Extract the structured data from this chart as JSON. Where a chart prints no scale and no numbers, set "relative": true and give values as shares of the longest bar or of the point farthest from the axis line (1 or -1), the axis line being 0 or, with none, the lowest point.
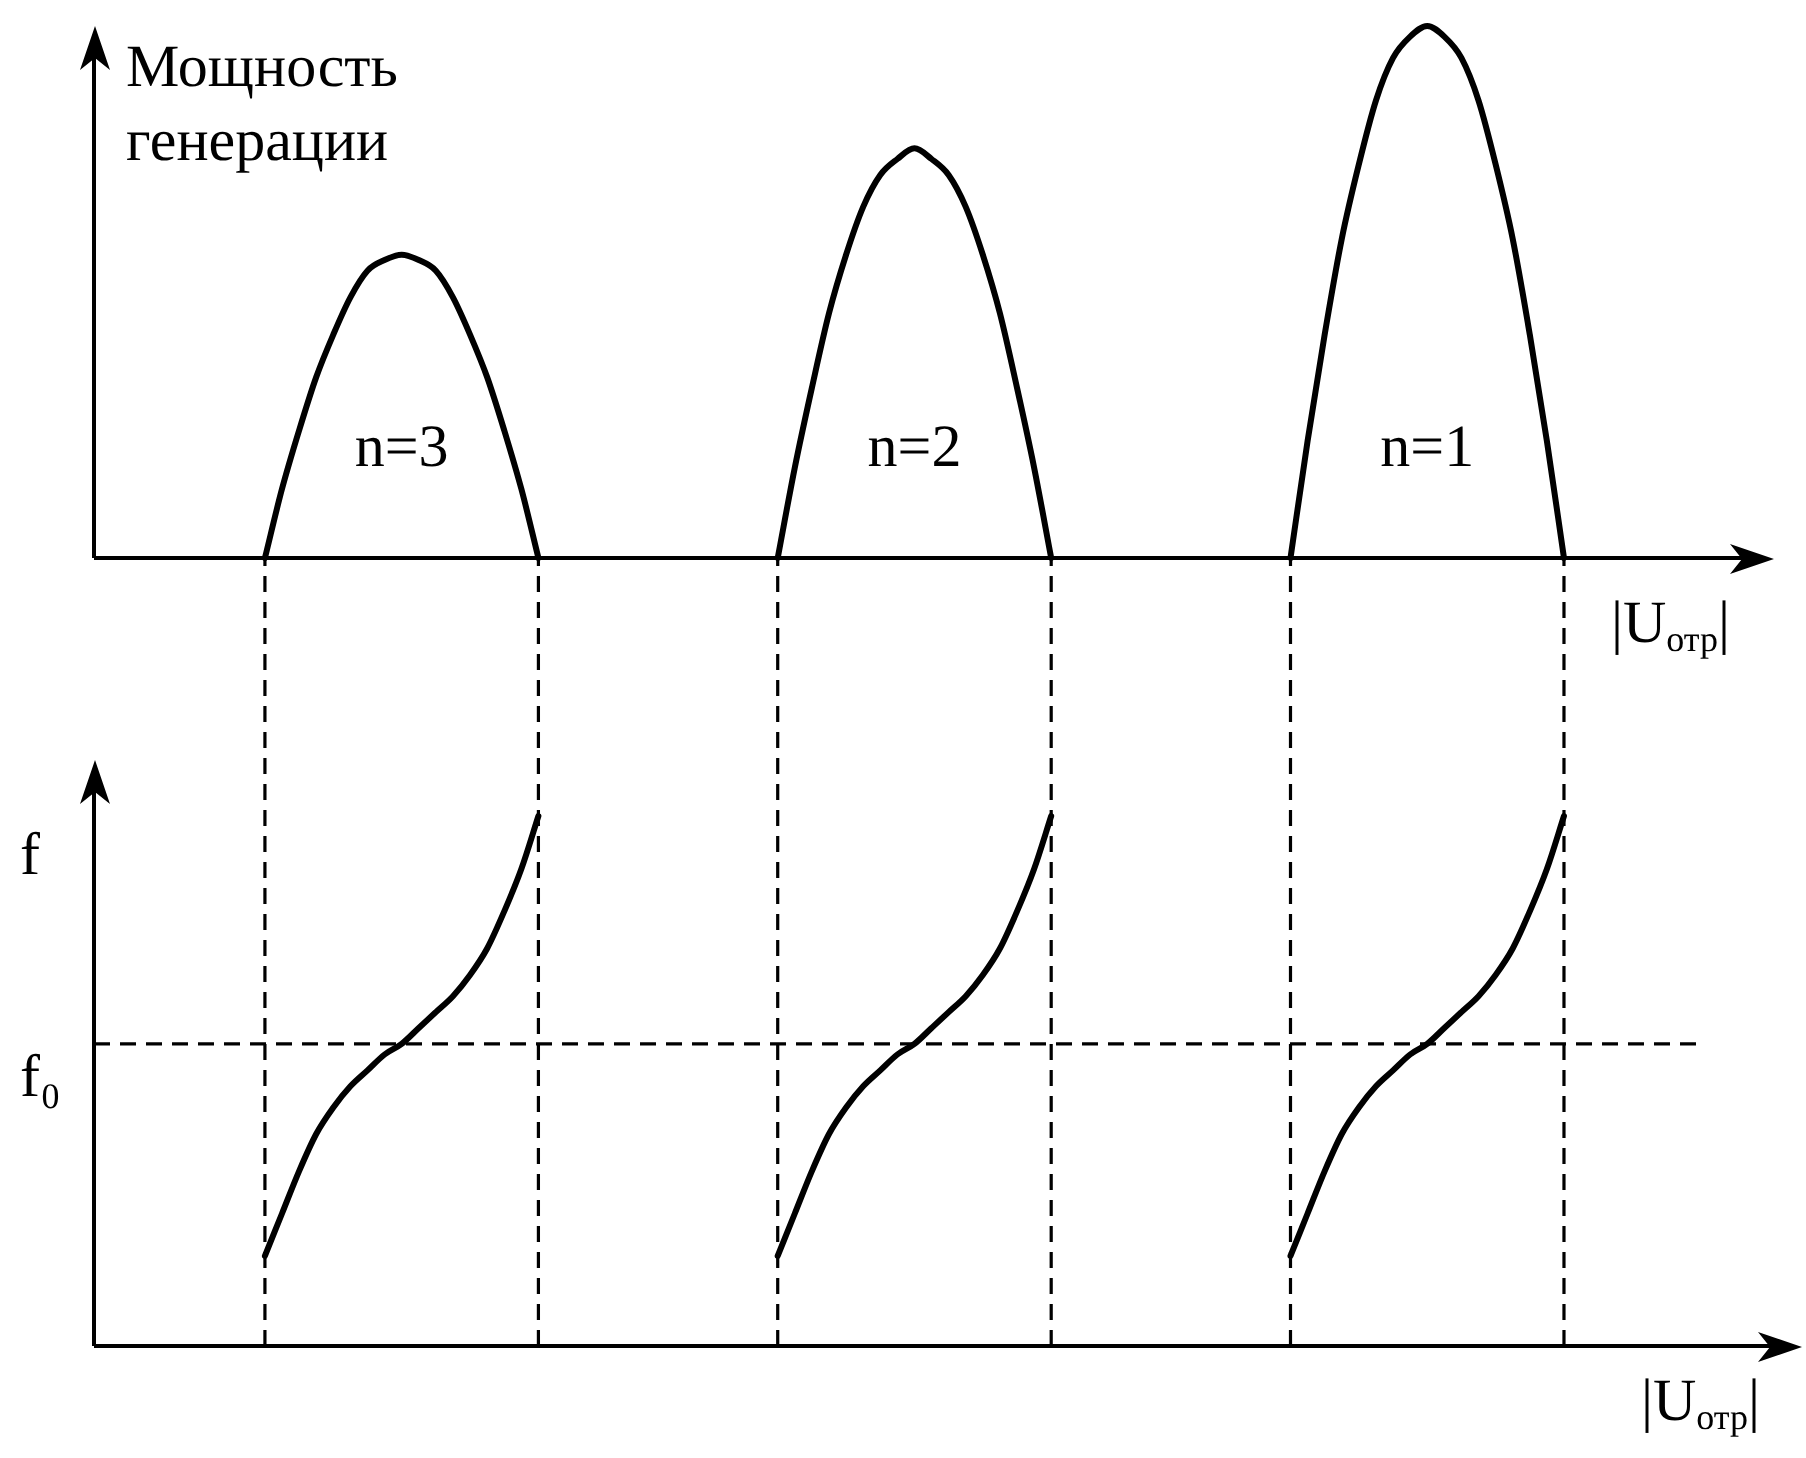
{
  "chart_data": [
    {
      "type": "line",
      "ylabel": "Мощность генерации",
      "xlabel": "|U$_{отр}$|",
      "relative": true,
      "categories": [
        null,
        null,
        null,
        null,
        null,
        null,
        null,
        null,
        null,
        null,
        null,
        null,
        null,
        null,
        null,
        null,
        null,
        null,
        null,
        null,
        null,
        null,
        null,
        null,
        null,
        null,
        null,
        null,
        null,
        null,
        null,
        null,
        null,
        null,
        null,
        null,
        null,
        null,
        null,
        null,
        null,
        null,
        null,
        null,
        null,
        null,
        null,
        null,
        null,
        null,
        null,
        null,
        null,
        null,
        null,
        null,
        null,
        null,
        null,
        null,
        null,
        null,
        null,
        null,
        null,
        null,
        null,
        null,
        null,
        null,
        null,
        null,
        null,
        null,
        null,
        null,
        null,
        null,
        null,
        null,
        null,
        null,
        null,
        null,
        null,
        null,
        null,
        null,
        null,
        null,
        null,
        null,
        null,
        null,
        null,
        null,
        null,
        null
      ],
      "series": [
        {
          "name": "n=3",
          "color": "#000000",
          "values": [
            null,
            null,
            null,
            null,
            null,
            null,
            null,
            null,
            null,
            null,
            0,
            0.13,
            0.24,
            0.34,
            0.42,
            0.49,
            0.54,
            0.56,
            0.57,
            0.56,
            0.54,
            0.49,
            0.42,
            0.34,
            0.24,
            0.13,
            0,
            null,
            null,
            null,
            null,
            null,
            null,
            null,
            null,
            null,
            null,
            null,
            null,
            null,
            null,
            null,
            null,
            null,
            null,
            null,
            null,
            null,
            null,
            null,
            null,
            null,
            null,
            null,
            null,
            null,
            null,
            null,
            null,
            null,
            null,
            null,
            null,
            null,
            null,
            null,
            null,
            null,
            null,
            null,
            null,
            null,
            null,
            null,
            null,
            null,
            null,
            null,
            null,
            null,
            null,
            null,
            null,
            null,
            null,
            null,
            null,
            null,
            null,
            null,
            null,
            null,
            null,
            null,
            null,
            null,
            null,
            null
          ]
        },
        {
          "name": "n=2",
          "color": "#000000",
          "values": [
            null,
            null,
            null,
            null,
            null,
            null,
            null,
            null,
            null,
            null,
            null,
            null,
            null,
            null,
            null,
            null,
            null,
            null,
            null,
            null,
            null,
            null,
            null,
            null,
            null,
            null,
            null,
            null,
            null,
            null,
            null,
            null,
            null,
            null,
            null,
            null,
            null,
            null,
            null,
            null,
            0,
            0.17,
            0.32,
            0.46,
            0.57,
            0.66,
            0.72,
            0.75,
            0.77,
            0.75,
            0.72,
            0.66,
            0.57,
            0.46,
            0.32,
            0.17,
            0,
            null,
            null,
            null,
            null,
            null,
            null,
            null,
            null,
            null,
            null,
            null,
            null,
            null,
            null,
            null,
            null,
            null,
            null,
            null,
            null,
            null,
            null,
            null,
            null,
            null,
            null,
            null,
            null,
            null,
            null,
            null,
            null,
            null,
            null,
            null,
            null,
            null,
            null,
            null,
            null,
            null
          ]
        },
        {
          "name": "n=1",
          "color": "#000000",
          "values": [
            null,
            null,
            null,
            null,
            null,
            null,
            null,
            null,
            null,
            null,
            null,
            null,
            null,
            null,
            null,
            null,
            null,
            null,
            null,
            null,
            null,
            null,
            null,
            null,
            null,
            null,
            null,
            null,
            null,
            null,
            null,
            null,
            null,
            null,
            null,
            null,
            null,
            null,
            null,
            null,
            null,
            null,
            null,
            null,
            null,
            null,
            null,
            null,
            null,
            null,
            null,
            null,
            null,
            null,
            null,
            null,
            null,
            null,
            null,
            null,
            null,
            null,
            null,
            null,
            null,
            null,
            null,
            null,
            null,
            null,
            0,
            0.22,
            0.42,
            0.6,
            0.74,
            0.86,
            0.94,
            0.98,
            1,
            0.98,
            0.94,
            0.86,
            0.74,
            0.6,
            0.42,
            0.22,
            0,
            null,
            null,
            null,
            null,
            null,
            null,
            null,
            null,
            null,
            null,
            null
          ]
        }
      ]
    },
    {
      "type": "line",
      "ylabel": "f",
      "xlabel": "|U$_{отр}$|",
      "relative": true,
      "grid": "x",
      "categories": [
        null,
        null,
        null,
        null,
        null,
        null,
        null,
        null,
        null,
        null,
        null,
        null,
        null,
        null,
        null,
        null,
        null,
        null,
        null,
        null,
        null,
        null,
        null,
        null,
        null,
        null,
        null,
        null,
        null,
        null,
        null,
        null,
        null,
        null,
        null,
        null,
        null,
        null,
        null,
        null,
        null,
        null,
        null,
        null,
        null,
        null,
        null,
        null,
        null,
        null,
        null,
        null,
        null,
        null,
        null,
        null,
        null,
        null,
        null,
        null,
        null,
        null,
        null,
        null,
        null,
        null,
        null,
        null,
        null,
        null,
        null,
        null,
        null,
        null,
        null,
        null,
        null,
        null,
        null,
        null,
        null,
        null,
        null,
        null,
        null,
        null,
        null,
        null,
        null,
        null,
        null,
        null,
        null,
        null,
        null,
        null,
        null,
        null
      ],
      "series": [
        {
          "color": "#000000",
          "values": [
            null,
            null,
            null,
            null,
            null,
            null,
            null,
            null,
            null,
            null,
            0.17,
            0.25,
            0.33,
            0.4,
            0.45,
            0.49,
            0.52,
            0.55,
            0.57,
            0.6,
            0.63,
            0.66,
            0.7,
            0.75,
            0.82,
            0.9,
            1,
            null,
            null,
            null,
            null,
            null,
            null,
            null,
            null,
            null,
            null,
            null,
            null,
            null,
            null,
            null,
            null,
            null,
            null,
            null,
            null,
            null,
            null,
            null,
            null,
            null,
            null,
            null,
            null,
            null,
            null,
            null,
            null,
            null,
            null,
            null,
            null,
            null,
            null,
            null,
            null,
            null,
            null,
            null,
            null,
            null,
            null,
            null,
            null,
            null,
            null,
            null,
            null,
            null,
            null,
            null,
            null,
            null,
            null,
            null,
            null,
            null,
            null,
            null,
            null,
            null,
            null,
            null,
            null,
            null,
            null,
            null
          ]
        },
        {
          "color": "#000000",
          "values": [
            null,
            null,
            null,
            null,
            null,
            null,
            null,
            null,
            null,
            null,
            null,
            null,
            null,
            null,
            null,
            null,
            null,
            null,
            null,
            null,
            null,
            null,
            null,
            null,
            null,
            null,
            null,
            null,
            null,
            null,
            null,
            null,
            null,
            null,
            null,
            null,
            null,
            null,
            null,
            null,
            0.17,
            0.25,
            0.33,
            0.4,
            0.45,
            0.49,
            0.52,
            0.55,
            0.57,
            0.6,
            0.63,
            0.66,
            0.7,
            0.75,
            0.82,
            0.9,
            1,
            null,
            null,
            null,
            null,
            null,
            null,
            null,
            null,
            null,
            null,
            null,
            null,
            null,
            null,
            null,
            null,
            null,
            null,
            null,
            null,
            null,
            null,
            null,
            null,
            null,
            null,
            null,
            null,
            null,
            null,
            null,
            null,
            null,
            null,
            null,
            null,
            null,
            null,
            null,
            null,
            null
          ]
        },
        {
          "color": "#000000",
          "values": [
            null,
            null,
            null,
            null,
            null,
            null,
            null,
            null,
            null,
            null,
            null,
            null,
            null,
            null,
            null,
            null,
            null,
            null,
            null,
            null,
            null,
            null,
            null,
            null,
            null,
            null,
            null,
            null,
            null,
            null,
            null,
            null,
            null,
            null,
            null,
            null,
            null,
            null,
            null,
            null,
            null,
            null,
            null,
            null,
            null,
            null,
            null,
            null,
            null,
            null,
            null,
            null,
            null,
            null,
            null,
            null,
            null,
            null,
            null,
            null,
            null,
            null,
            null,
            null,
            null,
            null,
            null,
            null,
            null,
            null,
            0.17,
            0.25,
            0.33,
            0.4,
            0.45,
            0.49,
            0.52,
            0.55,
            0.57,
            0.6,
            0.63,
            0.66,
            0.7,
            0.75,
            0.82,
            0.9,
            1,
            null,
            null,
            null,
            null,
            null,
            null,
            null,
            null,
            null,
            null,
            null
          ]
        }
      ],
      "ref_lines": [
        {
          "axis": "y",
          "value": 0.57,
          "label": "f₀",
          "line_style": "dashed"
        }
      ]
    }
  ]
}
